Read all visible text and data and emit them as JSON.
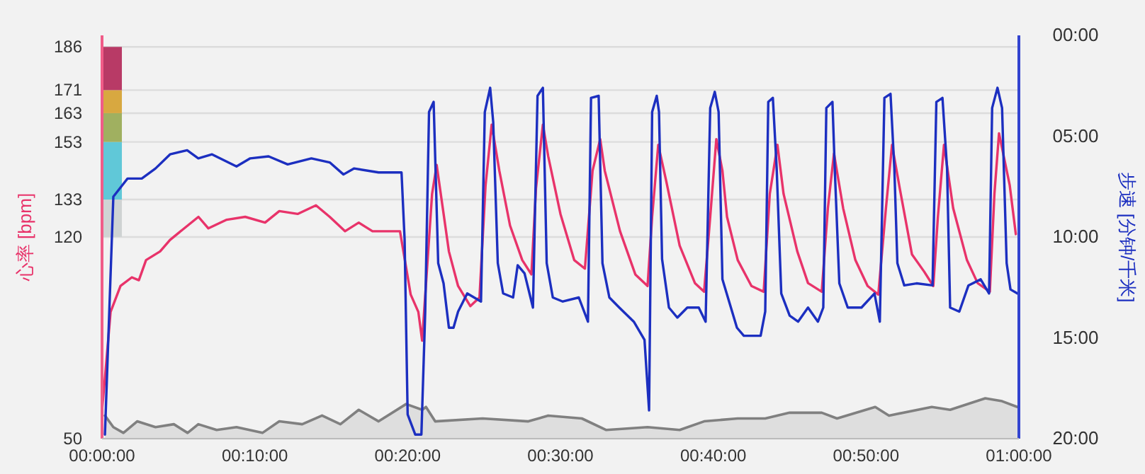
{
  "chart_data": {
    "type": "line",
    "ylabel": "心率 [bpm]",
    "y2label": "步速 [分钟/千米]",
    "xlim": [
      0,
      60
    ],
    "xticks": [
      {
        "value": 0,
        "label": "00:00:00"
      },
      {
        "value": 10,
        "label": "00:10:00"
      },
      {
        "value": 20,
        "label": "00:20:00"
      },
      {
        "value": 30,
        "label": "00:30:00"
      },
      {
        "value": 40,
        "label": "00:40:00"
      },
      {
        "value": 50,
        "label": "00:50:00"
      },
      {
        "value": 60,
        "label": "01:00:00"
      }
    ],
    "ylim": [
      50,
      190
    ],
    "yticks": [
      50,
      120,
      133,
      153,
      163,
      171,
      186
    ],
    "y2lim": [
      20,
      0
    ],
    "y2ticks": [
      {
        "value": 0,
        "label": "00:00"
      },
      {
        "value": 5,
        "label": "05:00"
      },
      {
        "value": 10,
        "label": "10:00"
      },
      {
        "value": 15,
        "label": "15:00"
      },
      {
        "value": 20,
        "label": "20:00"
      }
    ],
    "grid": "y",
    "marker": "none",
    "line_style": "solid",
    "series": [
      {
        "type": "bar",
        "axis": "y",
        "x": [
          0.65
        ],
        "base": [
          120
        ],
        "values": [
          13
        ],
        "color": "#cfd3d3"
      },
      {
        "type": "bar",
        "axis": "y",
        "x": [
          0.65
        ],
        "base": [
          133
        ],
        "values": [
          20
        ],
        "color": "#60c8d8"
      },
      {
        "type": "bar",
        "axis": "y",
        "x": [
          0.65
        ],
        "base": [
          153
        ],
        "values": [
          10
        ],
        "color": "#a0b060"
      },
      {
        "type": "bar",
        "axis": "y",
        "x": [
          0.65
        ],
        "base": [
          163
        ],
        "values": [
          8
        ],
        "color": "#d8a840"
      },
      {
        "type": "bar",
        "axis": "y",
        "x": [
          0.65
        ],
        "base": [
          171
        ],
        "values": [
          15
        ],
        "color": "#b83a66"
      },
      {
        "type": "area",
        "color": "#808080",
        "axis": "y",
        "x": [
          0.19,
          0.74,
          1.4,
          2.3,
          3.5,
          4.7,
          5.6,
          6.3,
          7.5,
          8.8,
          10.5,
          11.6,
          13.1,
          14.4,
          15.6,
          16.8,
          18.1,
          19.9,
          20.95,
          21.2,
          21.8,
          24.9,
          27.9,
          29.2,
          31.4,
          33.0,
          35.7,
          37.8,
          39.4,
          41.6,
          43.4,
          45.0,
          47.1,
          48.1,
          50.6,
          51.5,
          54.3,
          55.5,
          57.8,
          58.9,
          59.9
        ],
        "values": [
          58,
          54,
          52,
          56,
          54,
          55,
          52,
          55,
          53,
          54,
          52,
          56,
          55,
          58,
          55,
          60,
          56,
          62,
          60,
          61,
          56,
          57,
          56,
          58,
          57,
          53,
          54,
          53,
          56,
          57,
          57,
          59,
          59,
          57,
          61,
          58,
          61,
          60,
          64,
          63,
          61
        ]
      },
      {
        "color": "#e8336a",
        "axis": "y",
        "x": [
          0,
          0.19,
          0.56,
          1.21,
          1.95,
          2.41,
          2.88,
          3.8,
          4.45,
          5.38,
          6.31,
          6.96,
          8.16,
          9.37,
          10.67,
          11.6,
          12.8,
          14.0,
          14.9,
          15.9,
          16.8,
          17.7,
          18.6,
          19.5,
          20.2,
          20.7,
          20.95,
          21.6,
          21.9,
          22.3,
          22.7,
          23.3,
          24.1,
          24.7,
          25.1,
          25.5,
          26.0,
          26.7,
          27.5,
          28.1,
          28.4,
          28.85,
          29.2,
          30.0,
          30.9,
          31.6,
          32.1,
          32.6,
          32.9,
          33.9,
          34.9,
          35.7,
          36.0,
          36.4,
          36.9,
          37.8,
          38.8,
          39.4,
          39.8,
          40.2,
          40.6,
          40.9,
          41.6,
          42.5,
          43.3,
          43.7,
          44.2,
          44.6,
          45.5,
          46.2,
          47.1,
          47.5,
          47.9,
          48.5,
          49.3,
          50.1,
          50.8,
          51.3,
          51.7,
          52.2,
          53.0,
          53.8,
          54.4,
          54.7,
          55.1,
          55.7,
          56.6,
          57.3,
          58.1,
          58.4,
          58.7,
          59.4,
          59.8
        ],
        "values": [
          60,
          71,
          94,
          103,
          106,
          105,
          112,
          115,
          119,
          123,
          127,
          123,
          126,
          127,
          125,
          129,
          128,
          131,
          127,
          122,
          125,
          122,
          122,
          122,
          100,
          94,
          84,
          135,
          145,
          130,
          115,
          103,
          96,
          99,
          138,
          159,
          143,
          124,
          112,
          107,
          137,
          159,
          148,
          128,
          112,
          109,
          143,
          154,
          143,
          122,
          107,
          103,
          127,
          152,
          140,
          117,
          104,
          101,
          127,
          154,
          143,
          127,
          112,
          103,
          101,
          135,
          152,
          135,
          115,
          104,
          101,
          130,
          149,
          130,
          112,
          103,
          100,
          130,
          152,
          137,
          114,
          108,
          103,
          127,
          152,
          130,
          112,
          104,
          101,
          135,
          156,
          138,
          121
        ]
      },
      {
        "type": "line",
        "color": "#1c2fc0",
        "axis": "y2",
        "x": [
          0.19,
          0.74,
          1.67,
          2.6,
          3.5,
          4.45,
          5.57,
          6.3,
          7.2,
          8.8,
          9.7,
          10.9,
          12.15,
          13.7,
          14.9,
          15.8,
          16.5,
          18.1,
          19.6,
          19.8,
          20.0,
          20.5,
          20.9,
          21.15,
          21.4,
          21.7,
          22.0,
          22.35,
          22.7,
          23.0,
          23.3,
          23.9,
          24.8,
          25.05,
          25.4,
          25.6,
          25.9,
          26.25,
          26.9,
          27.2,
          27.65,
          28.2,
          28.5,
          28.85,
          29.1,
          29.5,
          30.15,
          31.2,
          31.8,
          32.0,
          32.5,
          32.75,
          33.2,
          33.85,
          34.8,
          35.5,
          35.8,
          36.0,
          36.3,
          36.45,
          36.65,
          37.1,
          37.65,
          38.3,
          39.05,
          39.5,
          39.8,
          40.1,
          40.35,
          40.6,
          41.55,
          42.0,
          43.1,
          43.4,
          43.6,
          43.9,
          44.15,
          44.45,
          45.0,
          45.55,
          46.2,
          46.85,
          47.2,
          47.4,
          47.8,
          47.95,
          48.25,
          48.8,
          49.7,
          50.55,
          50.9,
          51.2,
          51.6,
          51.85,
          52.05,
          52.5,
          53.3,
          54.35,
          54.6,
          55.0,
          55.3,
          55.5,
          56.1,
          56.7,
          57.5,
          58.05,
          58.25,
          58.6,
          58.9,
          59.2,
          59.45,
          59.9
        ],
        "values": [
          19.8,
          8.0,
          7.1,
          7.1,
          6.6,
          5.9,
          5.7,
          6.1,
          5.9,
          6.5,
          6.1,
          6.0,
          6.4,
          6.1,
          6.3,
          6.9,
          6.6,
          6.8,
          6.8,
          10.1,
          18.8,
          19.8,
          19.8,
          13.7,
          3.8,
          3.3,
          11.3,
          12.3,
          14.5,
          14.5,
          13.7,
          12.8,
          13.2,
          3.8,
          2.6,
          4.3,
          11.3,
          12.8,
          13.0,
          11.4,
          11.8,
          13.5,
          3.0,
          2.6,
          11.3,
          13.0,
          13.2,
          13.0,
          14.2,
          3.1,
          3.0,
          11.3,
          13.0,
          13.5,
          14.2,
          15.1,
          18.6,
          3.8,
          3.0,
          3.8,
          11.1,
          13.5,
          14.0,
          13.5,
          13.5,
          14.2,
          3.6,
          2.8,
          3.8,
          12.1,
          14.5,
          14.9,
          14.9,
          13.7,
          3.3,
          3.1,
          6.6,
          12.8,
          13.9,
          14.2,
          13.5,
          14.2,
          13.5,
          3.6,
          3.3,
          6.6,
          12.3,
          13.5,
          13.5,
          12.8,
          14.2,
          3.1,
          2.9,
          6.6,
          11.3,
          12.4,
          12.3,
          12.4,
          3.3,
          3.1,
          6.6,
          13.5,
          13.7,
          12.4,
          12.1,
          12.8,
          3.6,
          2.6,
          3.6,
          11.3,
          12.6,
          12.8
        ]
      }
    ]
  }
}
